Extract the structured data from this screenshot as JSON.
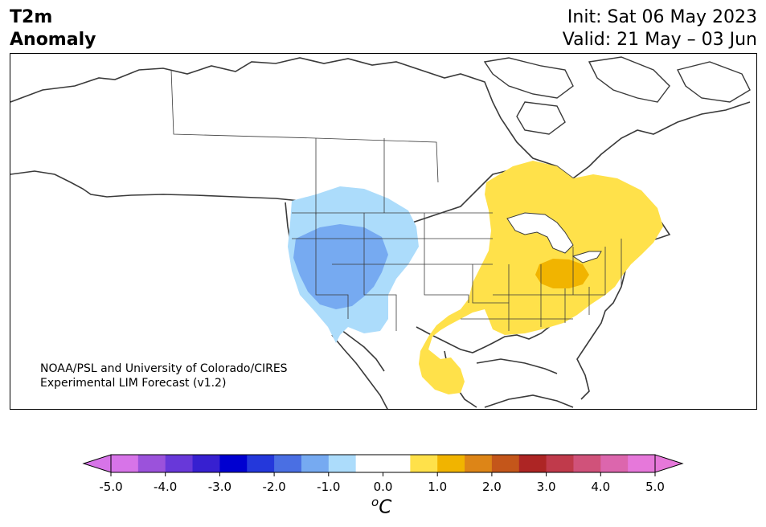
{
  "header": {
    "title_line1": "T2m",
    "title_line2": "Anomaly",
    "init": "Init: Sat 06 May 2023",
    "valid": "Valid: 21 May – 03 Jun"
  },
  "map": {
    "credit_line1": "NOAA/PSL and University of Colorado/CIRES",
    "credit_line2": "Experimental LIM Forecast (v1.2)"
  },
  "colorbar": {
    "unit_base": "C",
    "unit_sup": "o",
    "tick_labels": [
      "-5.0",
      "-4.0",
      "-3.0",
      "-2.0",
      "-1.0",
      "0.0",
      "1.0",
      "2.0",
      "3.0",
      "4.0",
      "5.0"
    ],
    "colors": [
      "#d774e8",
      "#9b52db",
      "#6838d9",
      "#3720d0",
      "#0000d0",
      "#2438db",
      "#4a6fe3",
      "#76aaf1",
      "#acdcfb",
      "#ffffff",
      "#ffffff",
      "#ffe14a",
      "#f1b400",
      "#dd8517",
      "#c4561a",
      "#ad2524",
      "#c03a4b",
      "#d0527a",
      "#dc66ad",
      "#e678da"
    ],
    "under_color": "#d774e8",
    "over_color": "#e678da"
  }
}
